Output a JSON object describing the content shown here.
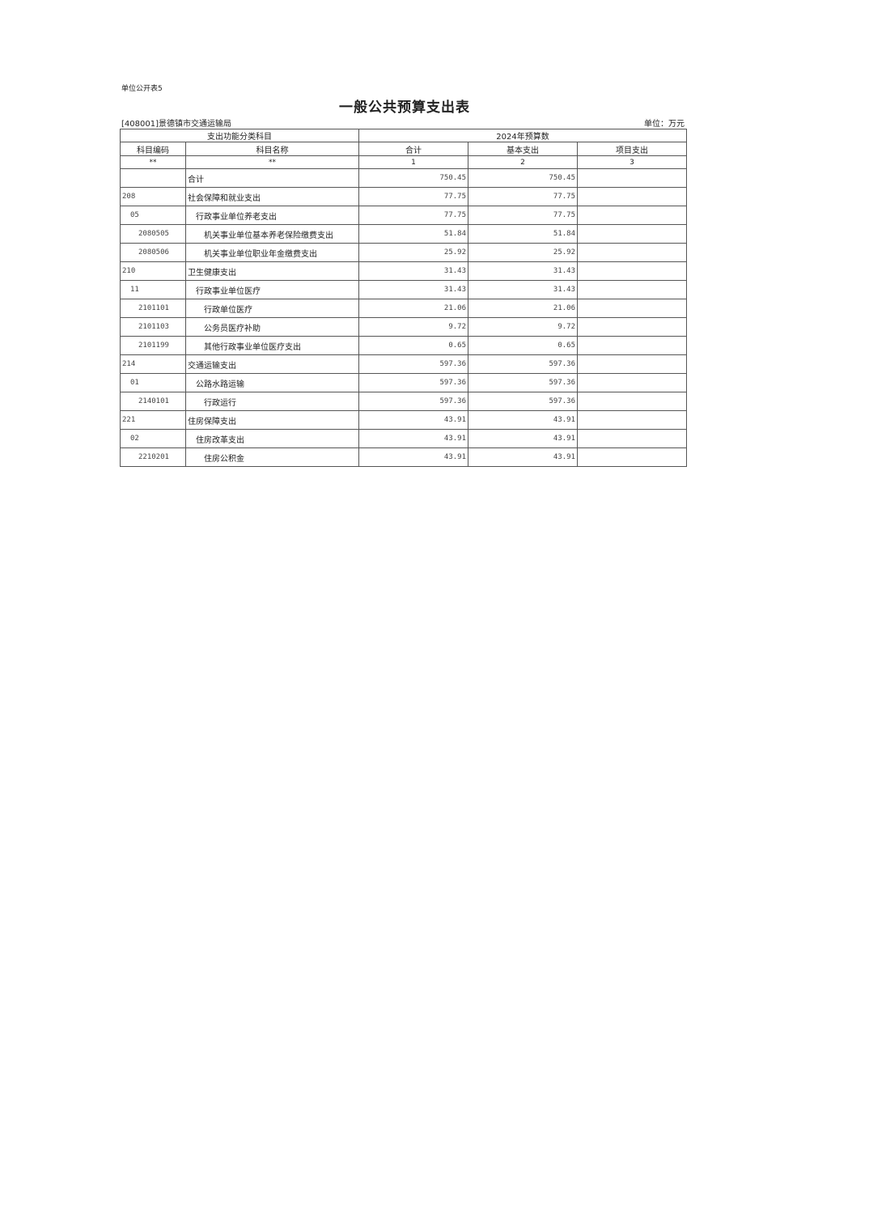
{
  "form_no": "单位公开表5",
  "title": "一般公共预算支出表",
  "unit_name": "[408001]景德镇市交通运输局",
  "unit_label": "单位：万元",
  "header": {
    "group_left": "支出功能分类科目",
    "group_right": "2024年预算数",
    "code": "科目编码",
    "name": "科目名称",
    "total": "合计",
    "basic": "基本支出",
    "project": "项目支出",
    "code_mark": "**",
    "name_mark": "**",
    "total_idx": "1",
    "basic_idx": "2",
    "project_idx": "3"
  },
  "rows": [
    {
      "level": 0,
      "code": "",
      "name": "合计",
      "total": "750.45",
      "basic": "750.45",
      "project": ""
    },
    {
      "level": 0,
      "code": "208",
      "name": "社会保障和就业支出",
      "total": "77.75",
      "basic": "77.75",
      "project": ""
    },
    {
      "level": 1,
      "code": "05",
      "name": "行政事业单位养老支出",
      "total": "77.75",
      "basic": "77.75",
      "project": ""
    },
    {
      "level": 2,
      "code": "2080505",
      "name": "机关事业单位基本养老保险缴费支出",
      "total": "51.84",
      "basic": "51.84",
      "project": ""
    },
    {
      "level": 2,
      "code": "2080506",
      "name": "机关事业单位职业年金缴费支出",
      "total": "25.92",
      "basic": "25.92",
      "project": ""
    },
    {
      "level": 0,
      "code": "210",
      "name": "卫生健康支出",
      "total": "31.43",
      "basic": "31.43",
      "project": ""
    },
    {
      "level": 1,
      "code": "11",
      "name": "行政事业单位医疗",
      "total": "31.43",
      "basic": "31.43",
      "project": ""
    },
    {
      "level": 2,
      "code": "2101101",
      "name": "行政单位医疗",
      "total": "21.06",
      "basic": "21.06",
      "project": ""
    },
    {
      "level": 2,
      "code": "2101103",
      "name": "公务员医疗补助",
      "total": "9.72",
      "basic": "9.72",
      "project": ""
    },
    {
      "level": 2,
      "code": "2101199",
      "name": "其他行政事业单位医疗支出",
      "total": "0.65",
      "basic": "0.65",
      "project": ""
    },
    {
      "level": 0,
      "code": "214",
      "name": "交通运输支出",
      "total": "597.36",
      "basic": "597.36",
      "project": ""
    },
    {
      "level": 1,
      "code": "01",
      "name": "公路水路运输",
      "total": "597.36",
      "basic": "597.36",
      "project": ""
    },
    {
      "level": 2,
      "code": "2140101",
      "name": "行政运行",
      "total": "597.36",
      "basic": "597.36",
      "project": ""
    },
    {
      "level": 0,
      "code": "221",
      "name": "住房保障支出",
      "total": "43.91",
      "basic": "43.91",
      "project": ""
    },
    {
      "level": 1,
      "code": "02",
      "name": "住房改革支出",
      "total": "43.91",
      "basic": "43.91",
      "project": ""
    },
    {
      "level": 2,
      "code": "2210201",
      "name": "住房公积金",
      "total": "43.91",
      "basic": "43.91",
      "project": ""
    }
  ]
}
